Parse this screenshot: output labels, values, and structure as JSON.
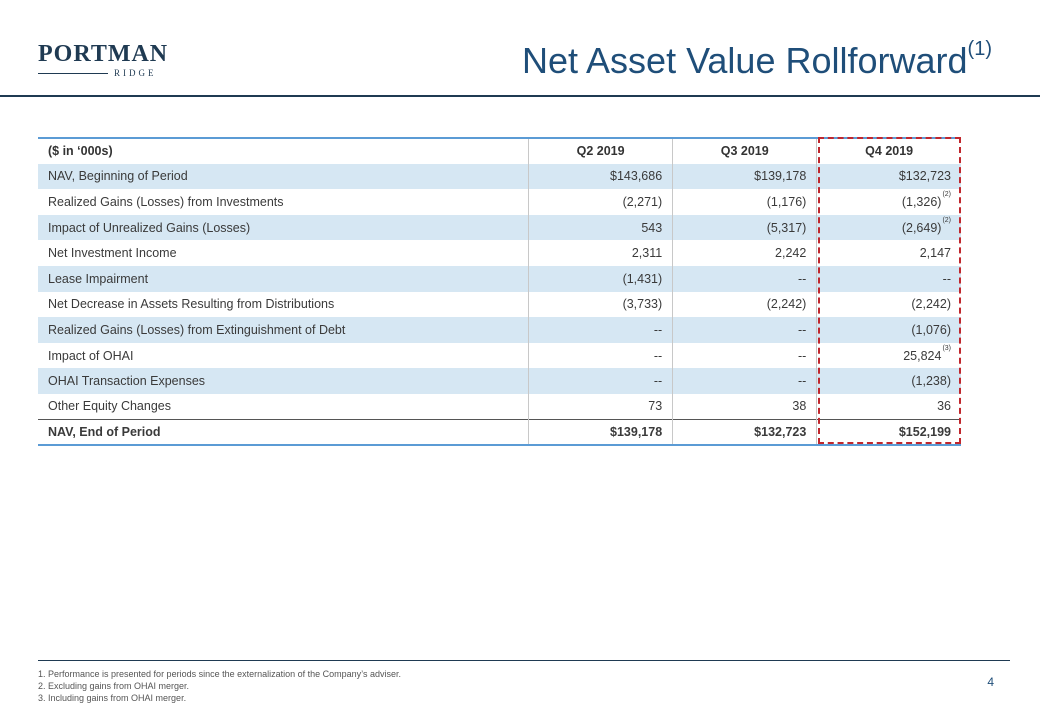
{
  "logo": {
    "main": "PORTMAN",
    "sub": "RIDGE"
  },
  "title": {
    "text": "Net Asset Value Rollforward",
    "sup": "(1)"
  },
  "table": {
    "headers": [
      "($ in ‘000s)",
      "Q2 2019",
      "Q3 2019",
      "Q4 2019"
    ],
    "rows": [
      {
        "label": "NAV, Beginning of Period",
        "q2": "$143,686",
        "q3": "$139,178",
        "q4": "$132,723",
        "q4_note": ""
      },
      {
        "label": "Realized Gains (Losses) from Investments",
        "q2": "(2,271)",
        "q3": "(1,176)",
        "q4": "(1,326)",
        "q4_note": "(2)"
      },
      {
        "label": "Impact of Unrealized Gains (Losses)",
        "q2": "543",
        "q3": "(5,317)",
        "q4": "(2,649)",
        "q4_note": "(2)"
      },
      {
        "label": "Net Investment Income",
        "q2": "2,311",
        "q3": "2,242",
        "q4": "2,147",
        "q4_note": ""
      },
      {
        "label": "Lease Impairment",
        "q2": "(1,431)",
        "q3": "--",
        "q4": "--",
        "q4_note": ""
      },
      {
        "label": "Net Decrease in Assets Resulting from Distributions",
        "q2": "(3,733)",
        "q3": "(2,242)",
        "q4": "(2,242)",
        "q4_note": ""
      },
      {
        "label": "Realized Gains (Losses) from Extinguishment of Debt",
        "q2": "--",
        "q3": "--",
        "q4": "(1,076)",
        "q4_note": ""
      },
      {
        "label": "Impact of OHAI",
        "q2": "--",
        "q3": "--",
        "q4": "25,824",
        "q4_note": "(3)"
      },
      {
        "label": "OHAI Transaction Expenses",
        "q2": "--",
        "q3": "--",
        "q4": "(1,238)",
        "q4_note": ""
      },
      {
        "label": "Other Equity Changes",
        "q2": "73",
        "q3": "38",
        "q4": "36",
        "q4_note": ""
      },
      {
        "label": "NAV, End of Period",
        "q2": "$139,178",
        "q3": "$132,723",
        "q4": "$152,199",
        "q4_note": ""
      }
    ]
  },
  "footnotes": [
    "1. Performance is presented for periods since the externalization of the Company’s adviser.",
    "2. Excluding gains from OHAI merger.",
    "3. Including gains from OHAI merger."
  ],
  "page_number": "4",
  "colors": {
    "brand_navy": "#1f3a52",
    "title_blue": "#1f4e79",
    "row_shade": "#d6e7f3",
    "highlight_red": "#c0272d"
  }
}
